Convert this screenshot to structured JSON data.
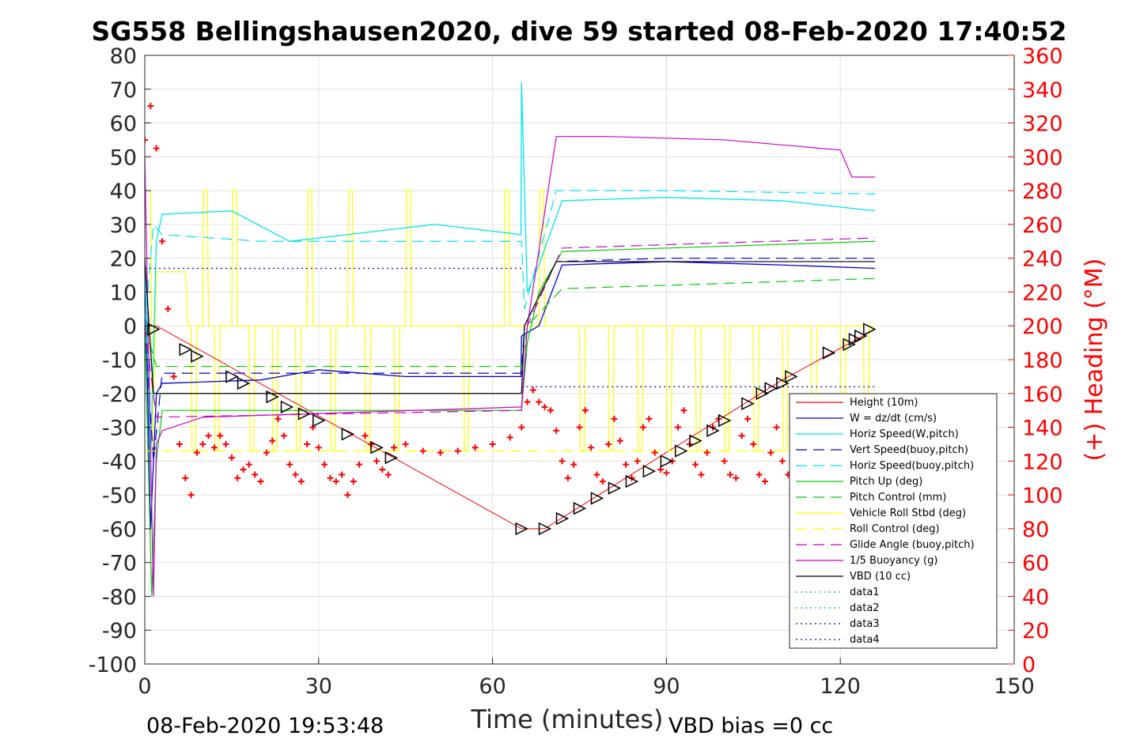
{
  "chart_data": {
    "type": "line",
    "title": "SG558 Bellingshausen2020, dive 59 started 08-Feb-2020 17:40:52",
    "xlabel": "Time (minutes)",
    "ylabel_right": "(+) Heading (°M)",
    "footer_left": "08-Feb-2020 19:53:48",
    "footer_right": "VBD bias =0 cc",
    "xlim": [
      0,
      150
    ],
    "ylim_left": [
      -100,
      80
    ],
    "ylim_right": [
      0,
      360
    ],
    "xticks": [
      0,
      30,
      60,
      90,
      120,
      150
    ],
    "yticks_left": [
      80,
      70,
      60,
      50,
      40,
      30,
      20,
      10,
      0,
      -10,
      -20,
      -30,
      -40,
      -50,
      -60,
      -70,
      -80,
      -90,
      -100
    ],
    "yticks_right": [
      360,
      340,
      320,
      300,
      280,
      260,
      240,
      220,
      200,
      180,
      160,
      140,
      120,
      100,
      80,
      60,
      40,
      20,
      0
    ],
    "grid": true,
    "legend_position": "lower-right",
    "colors": {
      "height": "#ff0000",
      "w": "#0000cd",
      "horiz_w": "#00e5ee",
      "vert_buoy": "#0000cd",
      "horiz_buoy": "#00e5ee",
      "pitch_up": "#00cc00",
      "pitch_ctrl": "#00cc00",
      "roll": "#ffff00",
      "roll_ctrl": "#ffff00",
      "glide": "#cc00cc",
      "buoyancy": "#cc00cc",
      "vbd": "#000000",
      "heading": "#ff0000"
    },
    "legend": [
      {
        "label": "Height (10m)",
        "color": "#ff0000",
        "style": "solid"
      },
      {
        "label": "W = dz/dt (cm/s)",
        "color": "#0000cd",
        "style": "solid"
      },
      {
        "label": "Horiz Speed(W,pitch)",
        "color": "#00e5ee",
        "style": "solid"
      },
      {
        "label": "Vert Speed(buoy,pitch)",
        "color": "#0000cd",
        "style": "dashed"
      },
      {
        "label": "Horiz Speed(buoy,pitch)",
        "color": "#00e5ee",
        "style": "dashed"
      },
      {
        "label": "Pitch Up (deg)",
        "color": "#00cc00",
        "style": "solid"
      },
      {
        "label": "Pitch Control (mm)",
        "color": "#00cc00",
        "style": "dashed"
      },
      {
        "label": "Vehicle Roll Stbd (deg)",
        "color": "#ffff00",
        "style": "solid"
      },
      {
        "label": "Roll Control (deg)",
        "color": "#ffff00",
        "style": "dashed"
      },
      {
        "label": "Glide Angle (buoy,pitch)",
        "color": "#cc00cc",
        "style": "dashed"
      },
      {
        "label": "1/5 Buoyancy (g)",
        "color": "#cc00cc",
        "style": "solid"
      },
      {
        "label": "VBD (10 cc)",
        "color": "#000000",
        "style": "solid"
      },
      {
        "label": "data1",
        "color": "#00cc00",
        "style": "dotted"
      },
      {
        "label": "data2",
        "color": "#00cc00",
        "style": "dotted"
      },
      {
        "label": "data3",
        "color": "#0000cd",
        "style": "dotted"
      },
      {
        "label": "data4",
        "color": "#0000cd",
        "style": "dotted"
      }
    ],
    "series": [
      {
        "key": "height",
        "x": [
          0,
          2,
          65,
          69,
          110,
          126
        ],
        "y": [
          0,
          0,
          -60,
          -60,
          -16,
          -1
        ]
      },
      {
        "key": "w",
        "x": [
          0,
          1,
          2,
          3,
          20,
          30,
          45,
          64.9,
          65,
          68,
          72,
          90,
          110,
          126
        ],
        "y": [
          20,
          -60,
          -20,
          -17,
          -16,
          -13,
          -15,
          -15,
          -3,
          0,
          18,
          19,
          18,
          17
        ]
      },
      {
        "key": "horiz_w",
        "x": [
          0,
          1,
          2,
          3,
          15,
          25,
          35,
          50,
          64.9,
          65,
          66,
          68,
          72,
          90,
          110,
          126
        ],
        "y": [
          20,
          -40,
          25,
          33,
          34,
          25,
          27,
          30,
          27,
          72,
          10,
          18,
          37,
          38,
          37,
          34
        ]
      },
      {
        "key": "vert_buoy",
        "x": [
          0,
          1.5,
          3,
          65,
          65.5,
          71,
          90,
          126
        ],
        "y": [
          0,
          -40,
          -14,
          -14,
          0,
          19,
          20,
          20
        ]
      },
      {
        "key": "horiz_buoy",
        "x": [
          0,
          1.5,
          3,
          20,
          65,
          65.5,
          71,
          90,
          126
        ],
        "y": [
          0,
          30,
          27,
          25,
          25,
          5,
          40,
          40,
          39
        ]
      },
      {
        "key": "pitch_up",
        "x": [
          0,
          1.2,
          2,
          3,
          65,
          66,
          68,
          72,
          126
        ],
        "y": [
          0,
          -80,
          -40,
          -25,
          -25,
          -5,
          10,
          22,
          25
        ]
      },
      {
        "key": "pitch_ctrl",
        "x": [
          0,
          2,
          65,
          66,
          72,
          126
        ],
        "y": [
          0,
          -12,
          -12,
          0,
          11,
          14
        ]
      },
      {
        "key": "roll_ctrl",
        "x": [
          0,
          126
        ],
        "y": [
          -37,
          -37
        ]
      },
      {
        "key": "glide",
        "x": [
          0,
          2,
          65,
          66,
          72,
          126
        ],
        "y": [
          0,
          -27,
          -25,
          0,
          23,
          26
        ]
      },
      {
        "key": "buoyancy",
        "x": [
          0,
          1.5,
          2,
          3,
          10,
          65,
          66,
          71,
          80,
          100,
          120,
          122,
          126
        ],
        "y": [
          50,
          -80,
          -35,
          -31,
          -27,
          -24,
          0,
          56,
          56,
          55,
          52,
          44,
          44
        ]
      },
      {
        "key": "vbd",
        "x": [
          0,
          1.5,
          2,
          65,
          65.5,
          71,
          126
        ],
        "y": [
          20,
          -20,
          -20,
          -20,
          0,
          19,
          19
        ]
      },
      {
        "key": "data3",
        "x": [
          0,
          65
        ],
        "y": [
          17,
          17
        ]
      },
      {
        "key": "data4",
        "x": [
          65,
          126
        ],
        "y": [
          -18,
          -18
        ]
      }
    ],
    "roll_events": {
      "baseline_descent": 0,
      "baseline_ascent": 0,
      "up_spikes": [
        10,
        15,
        28,
        35,
        45,
        62,
        68
      ],
      "down_spikes": [
        8,
        12,
        18,
        22,
        26,
        32,
        38,
        43,
        55,
        75,
        80,
        85,
        90,
        95,
        100,
        105,
        110,
        115,
        120,
        124
      ]
    },
    "heading": {
      "x": [
        0,
        1,
        2,
        3,
        4,
        5,
        6,
        7,
        8,
        9,
        10,
        11,
        12,
        13,
        14,
        15,
        16,
        17,
        18,
        19,
        20,
        21,
        22,
        23,
        24,
        25,
        26,
        27,
        28,
        29,
        30,
        31,
        32,
        33,
        34,
        35,
        36,
        37,
        38,
        39,
        40,
        41,
        42,
        43,
        45,
        48,
        51,
        54,
        57,
        60,
        63,
        65,
        66,
        67,
        68,
        69,
        70,
        71,
        72,
        73,
        74,
        75,
        76,
        77,
        78,
        79,
        80,
        81,
        82,
        83,
        84,
        85,
        86,
        87,
        88,
        89,
        90,
        91,
        92,
        93,
        94,
        95,
        96,
        97,
        98,
        99,
        100,
        101,
        102,
        103,
        104,
        105,
        106,
        107,
        108,
        109,
        110,
        111,
        112
      ],
      "y": [
        310,
        330,
        305,
        250,
        210,
        170,
        130,
        110,
        100,
        125,
        130,
        135,
        128,
        135,
        130,
        122,
        110,
        115,
        118,
        112,
        108,
        125,
        132,
        145,
        135,
        118,
        112,
        108,
        130,
        140,
        128,
        118,
        110,
        108,
        112,
        100,
        108,
        118,
        135,
        130,
        120,
        115,
        112,
        128,
        130,
        126,
        125,
        126,
        128,
        130,
        134,
        140,
        155,
        162,
        155,
        152,
        150,
        138,
        120,
        110,
        118,
        140,
        150,
        128,
        112,
        108,
        130,
        145,
        132,
        118,
        110,
        120,
        140,
        145,
        125,
        115,
        113,
        120,
        140,
        150,
        130,
        118,
        112,
        125,
        140,
        145,
        120,
        112,
        110,
        135,
        145,
        130,
        112,
        108,
        125,
        140,
        120,
        112,
        130
      ]
    },
    "vbd_markers": {
      "x": [
        1.5,
        7,
        9,
        15,
        17,
        22,
        24.5,
        27.5,
        30,
        35,
        40,
        42.5,
        65,
        69,
        72,
        75,
        78,
        81,
        84,
        87,
        90,
        92.5,
        95,
        98,
        100,
        104,
        106.5,
        108,
        110,
        111.5,
        118,
        121.5,
        122.5,
        123.5,
        125
      ],
      "y": [
        -1,
        -7,
        -9,
        -15,
        -17,
        -21,
        -24,
        -26,
        -28,
        -32,
        -36,
        -39,
        -60,
        -60,
        -57,
        -54,
        -51,
        -48,
        -46,
        -43,
        -40,
        -37,
        -34,
        -31,
        -28,
        -23,
        -20,
        -18.5,
        -17,
        -15,
        -8,
        -5.5,
        -4,
        -3,
        -1
      ]
    }
  }
}
